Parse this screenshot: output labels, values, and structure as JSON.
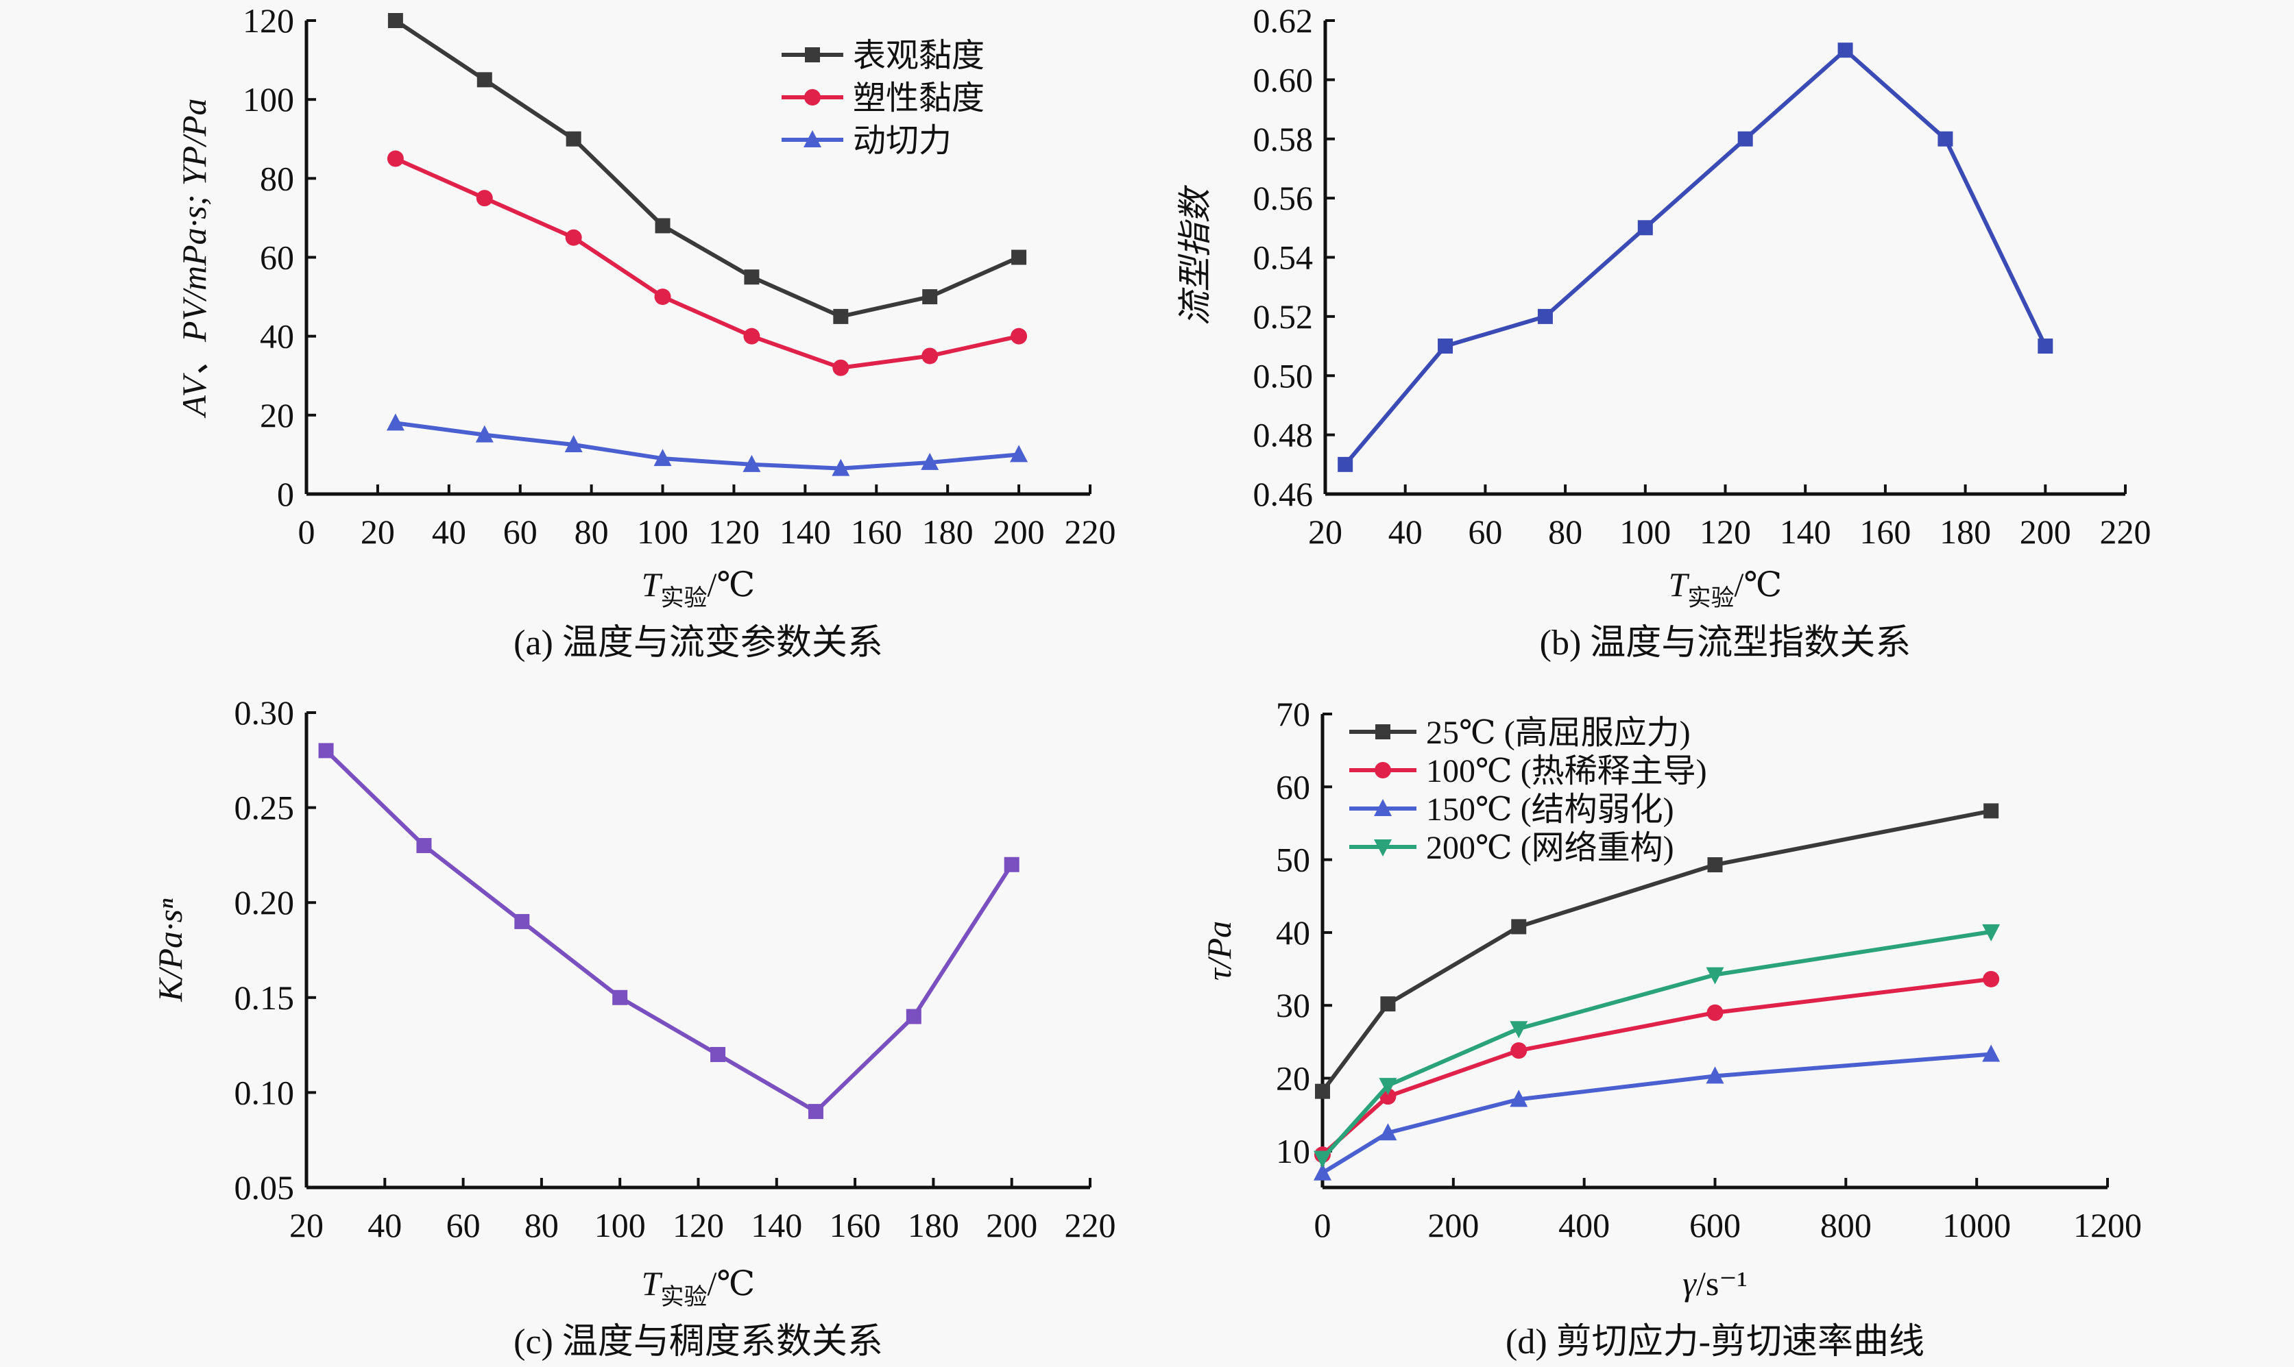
{
  "chart_data": [
    {
      "id": "a",
      "type": "line",
      "caption": "(a) 温度与流变参数关系",
      "xlabel_main": "T",
      "xlabel_sub": "实验",
      "xlabel_unit": "/℃",
      "ylabel": "AV、PV/mPa·s; YP/Pa",
      "xlim": [
        0,
        220
      ],
      "ylim": [
        0,
        120
      ],
      "xticks": [
        0,
        20,
        40,
        60,
        80,
        100,
        120,
        140,
        160,
        180,
        200,
        220
      ],
      "yticks": [
        0,
        20,
        40,
        60,
        80,
        100,
        120
      ],
      "legend_position": "top-right",
      "x": [
        25,
        50,
        75,
        100,
        125,
        150,
        175,
        200
      ],
      "series": [
        {
          "name": "表观黏度",
          "marker": "square",
          "color": "#3a3a3a",
          "values": [
            120,
            105,
            90,
            68,
            55,
            45,
            50,
            60
          ]
        },
        {
          "name": "塑性黏度",
          "marker": "circle",
          "color": "#e0224a",
          "values": [
            85,
            75,
            65,
            50,
            40,
            32,
            35,
            40
          ]
        },
        {
          "name": "动切力",
          "marker": "triangle-up",
          "color": "#4a5fd0",
          "values": [
            18,
            15,
            12.5,
            9,
            7.5,
            6.5,
            8,
            10
          ]
        }
      ]
    },
    {
      "id": "b",
      "type": "line",
      "caption": "(b) 温度与流型指数关系",
      "xlabel_main": "T",
      "xlabel_sub": "实验",
      "xlabel_unit": "/℃",
      "ylabel": "流型指数",
      "xlim": [
        20,
        220
      ],
      "ylim": [
        0.46,
        0.62
      ],
      "xticks": [
        20,
        40,
        60,
        80,
        100,
        120,
        140,
        160,
        180,
        200,
        220
      ],
      "yticks": [
        "0.46",
        "0.48",
        "0.50",
        "0.52",
        "0.54",
        "0.56",
        "0.58",
        "0.60",
        "0.62"
      ],
      "x": [
        25,
        50,
        75,
        100,
        125,
        150,
        175,
        200
      ],
      "series": [
        {
          "name": "流型指数",
          "marker": "square",
          "color": "#3a4bb5",
          "values": [
            0.47,
            0.51,
            0.52,
            0.55,
            0.58,
            0.61,
            0.58,
            0.51
          ]
        }
      ]
    },
    {
      "id": "c",
      "type": "line",
      "caption": "(c) 温度与稠度系数关系",
      "xlabel_main": "T",
      "xlabel_sub": "实验",
      "xlabel_unit": "/℃",
      "ylabel": "K/Pa·sⁿ",
      "xlim": [
        20,
        220
      ],
      "ylim": [
        0.05,
        0.3
      ],
      "xticks": [
        20,
        40,
        60,
        80,
        100,
        120,
        140,
        160,
        180,
        200,
        220
      ],
      "yticks": [
        "0.05",
        "0.10",
        "0.15",
        "0.20",
        "0.25",
        "0.30"
      ],
      "x": [
        25,
        50,
        75,
        100,
        125,
        150,
        175,
        200
      ],
      "series": [
        {
          "name": "稠度系数",
          "marker": "square",
          "color": "#7a4fc0",
          "values": [
            0.28,
            0.23,
            0.19,
            0.15,
            0.12,
            0.09,
            0.14,
            0.22
          ]
        }
      ]
    },
    {
      "id": "d",
      "type": "line",
      "caption": "(d) 剪切应力-剪切速率曲线",
      "xlabel_main": "γ",
      "xlabel_sub": "",
      "xlabel_unit": "/s⁻¹",
      "ylabel": "τ/Pa",
      "xlim": [
        0,
        1200
      ],
      "ylim": [
        5,
        70
      ],
      "xticks": [
        0,
        200,
        400,
        600,
        800,
        1000,
        1200
      ],
      "yticks": [
        10,
        20,
        30,
        40,
        50,
        60,
        70
      ],
      "legend_position": "top-left",
      "x": [
        0,
        100,
        300,
        600,
        1022
      ],
      "series": [
        {
          "name": "25℃ (高屈服应力)",
          "marker": "square",
          "color": "#3a3a3a",
          "values": [
            18.2,
            30.2,
            40.8,
            49.3,
            56.7
          ]
        },
        {
          "name": "100℃ (热稀释主导)",
          "marker": "circle",
          "color": "#e0224a",
          "values": [
            9.5,
            17.5,
            23.8,
            29.0,
            33.6
          ]
        },
        {
          "name": "150℃ (结构弱化)",
          "marker": "triangle-up",
          "color": "#4a5fd0",
          "values": [
            7.0,
            12.5,
            17.1,
            20.3,
            23.3
          ]
        },
        {
          "name": "200℃ (网络重构)",
          "marker": "triangle-down",
          "color": "#2aa37a",
          "values": [
            9.0,
            19.0,
            26.8,
            34.2,
            40.1
          ]
        }
      ]
    }
  ]
}
